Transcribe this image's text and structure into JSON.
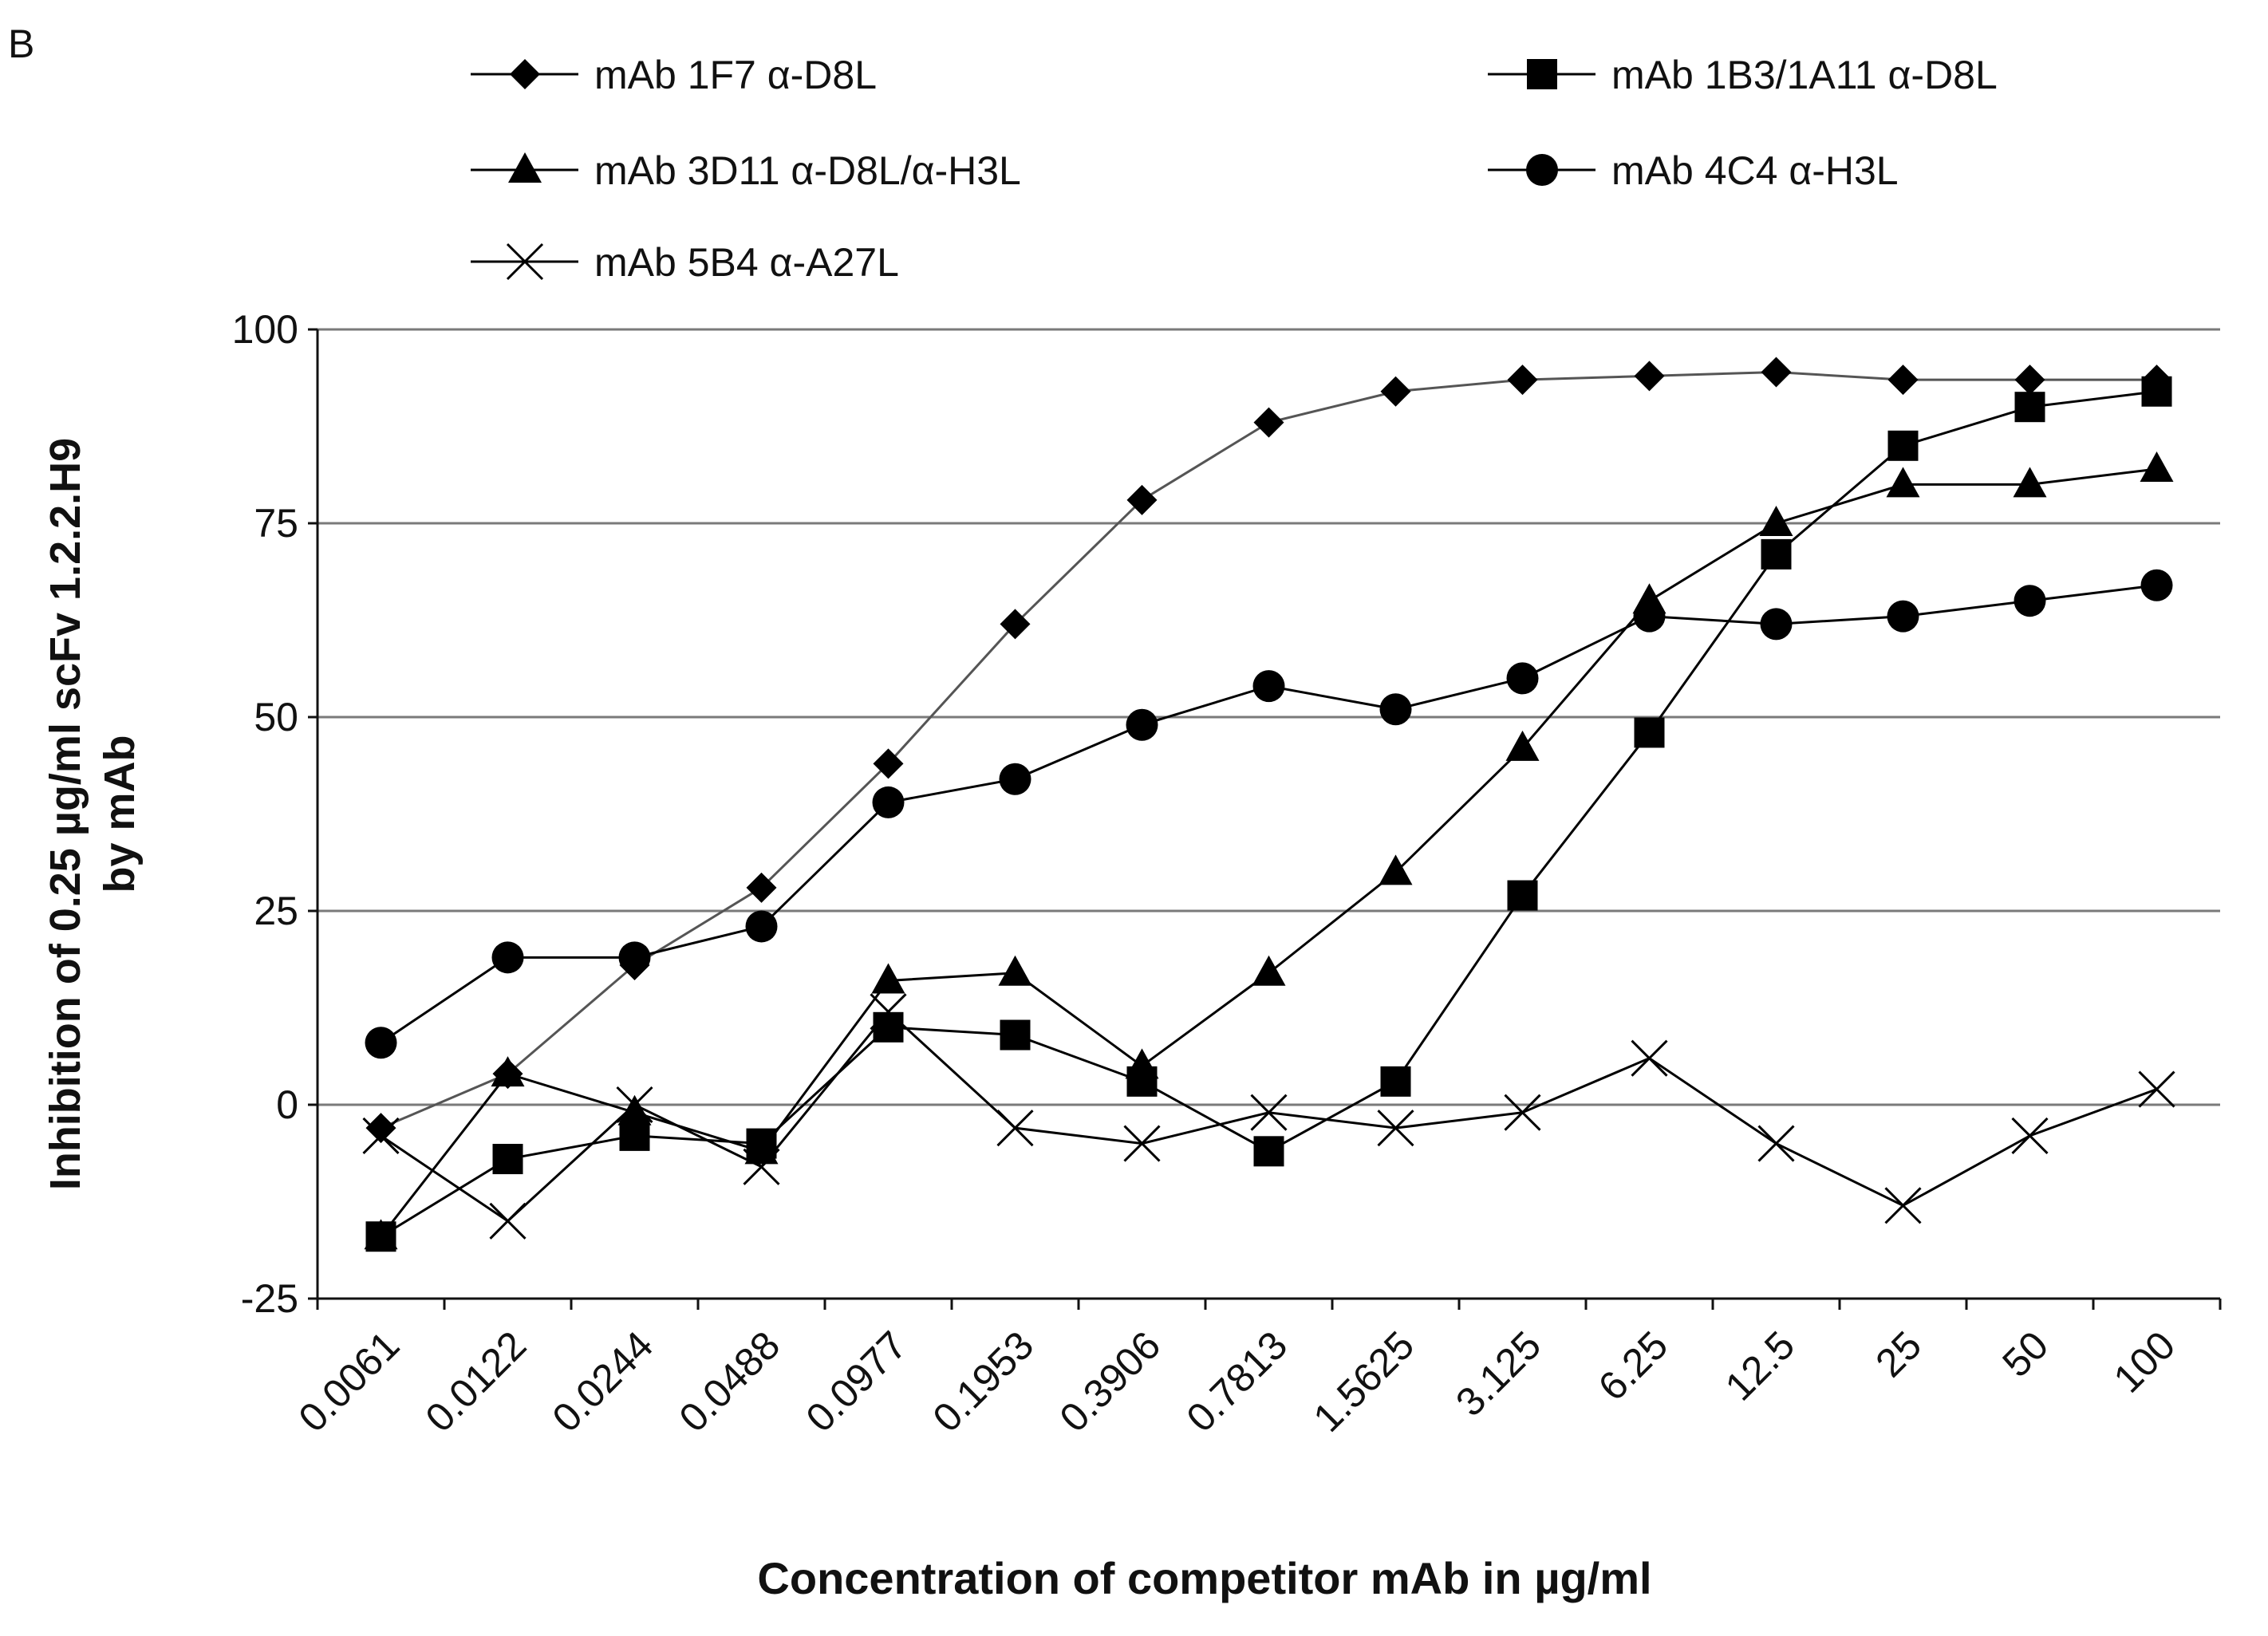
{
  "panel_label": "B",
  "chart_data": {
    "type": "line",
    "title": "",
    "xlabel": "Concentration of competitor mAb in µg/ml",
    "ylabel": [
      "Inhibition of 0.25 µg/ml scFv 1.2.2.H9",
      "by mAb"
    ],
    "categories": [
      "0.0061",
      "0.0122",
      "0.0244",
      "0.0488",
      "0.0977",
      "0.1953",
      "0.3906",
      "0.7813",
      "1.5625",
      "3.125",
      "6.25",
      "12.5",
      "25",
      "50",
      "100"
    ],
    "ylim": [
      -25,
      100
    ],
    "yticks": [
      -25,
      0,
      25,
      50,
      75,
      100
    ],
    "ytick_labels": [
      "-25",
      "0",
      "25",
      "50",
      "75",
      "100"
    ],
    "grid": true,
    "legend": "top",
    "series": [
      {
        "name": "mAb 1F7 α-D8L",
        "marker": "diamond",
        "values": [
          -3,
          4,
          18,
          28,
          44,
          62,
          78,
          88,
          92,
          93.5,
          94,
          94.5,
          93.5,
          93.5,
          93.5
        ]
      },
      {
        "name": "mAb 1B3/1A11 α-D8L",
        "marker": "square",
        "values": [
          -17,
          -7,
          -4,
          -5,
          10,
          9,
          3,
          -6,
          3,
          27,
          48,
          71,
          85,
          90,
          92
        ]
      },
      {
        "name": "mAb 3D11 α-D8L/α-H3L",
        "marker": "triangle",
        "values": [
          -17,
          4,
          -1,
          -6,
          16,
          17,
          5,
          17,
          30,
          46,
          65,
          75,
          80,
          80,
          82
        ]
      },
      {
        "name": "mAb 4C4 α-H3L",
        "marker": "circle",
        "values": [
          8,
          19,
          19,
          23,
          39,
          42,
          49,
          54,
          51,
          55,
          63,
          62,
          63,
          65,
          67
        ]
      },
      {
        "name": "mAb 5B4 α-A27L",
        "marker": "x",
        "values": [
          -4,
          -15,
          0,
          -8,
          12,
          -3,
          -5,
          -1,
          -3,
          -1,
          6,
          -5,
          -13,
          -4,
          2
        ]
      }
    ]
  }
}
